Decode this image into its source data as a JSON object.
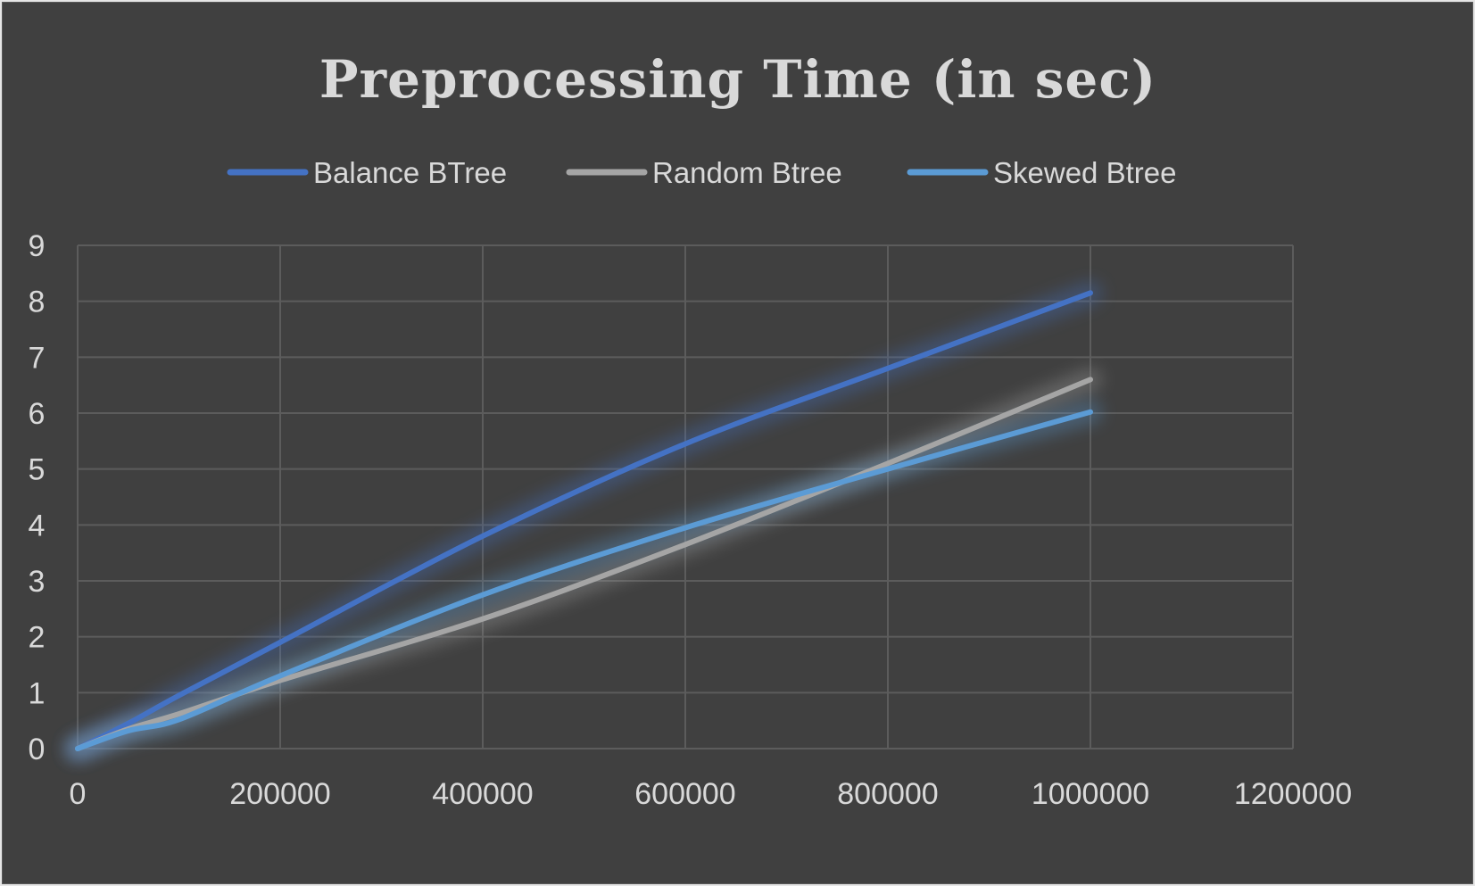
{
  "chart_data": {
    "type": "line",
    "title": "Preprocessing Time (in sec)",
    "xlabel": "",
    "ylabel": "",
    "xlim": [
      0,
      1200000
    ],
    "ylim": [
      0,
      9
    ],
    "x_ticks": [
      "0",
      "200000",
      "400000",
      "600000",
      "800000",
      "1000000",
      "1200000"
    ],
    "y_ticks": [
      "0",
      "1",
      "2",
      "3",
      "4",
      "5",
      "6",
      "7",
      "8",
      "9"
    ],
    "grid": true,
    "legend_position": "top",
    "series": [
      {
        "name": "Balance BTree",
        "color": "#4472c4",
        "x": [
          0,
          50000,
          100000,
          200000,
          400000,
          600000,
          800000,
          1000000
        ],
        "y": [
          0,
          0.45,
          0.95,
          1.9,
          3.8,
          5.45,
          6.8,
          8.15
        ]
      },
      {
        "name": "Random Btree",
        "color": "#a5a5a5",
        "x": [
          0,
          50000,
          100000,
          200000,
          400000,
          600000,
          800000,
          1000000
        ],
        "y": [
          0,
          0.35,
          0.62,
          1.22,
          2.32,
          3.65,
          5.1,
          6.6
        ]
      },
      {
        "name": "Skewed Btree",
        "color": "#5b9bd5",
        "x": [
          0,
          50000,
          100000,
          200000,
          400000,
          600000,
          800000,
          1000000
        ],
        "y": [
          0,
          0.32,
          0.52,
          1.3,
          2.75,
          3.95,
          5.0,
          6.02
        ]
      }
    ]
  }
}
